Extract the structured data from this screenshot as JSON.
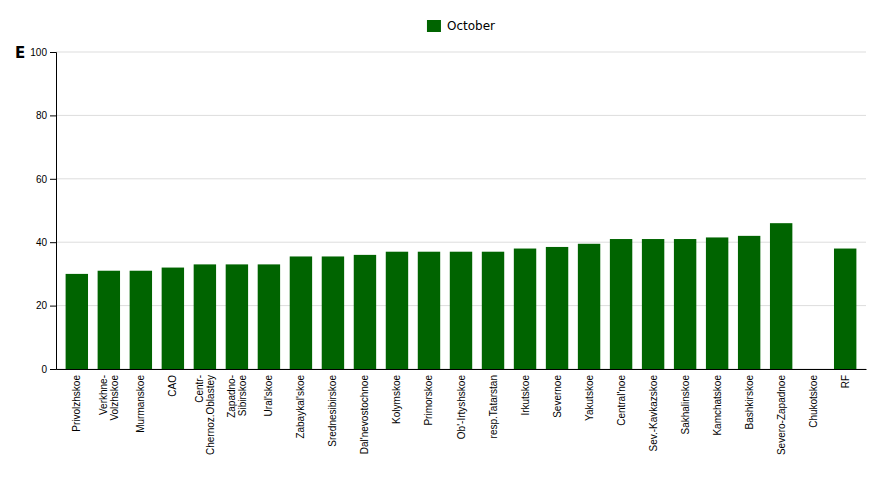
{
  "chart_data": {
    "type": "bar",
    "ylabel": "E",
    "categories": [
      "Privolzhskoe",
      "Verkhne-\nVolzhskoe",
      "Murmanskoe",
      "CAO",
      "Centr-\nChernoz.Oblastey",
      "Zapadno-\nSibirskoe",
      "Ural'skoe",
      "Zabaykal'skoe",
      "Srednesibirskoe",
      "Dal'nevostochnoe",
      "Kolymskoe",
      "Primorskoe",
      "Ob'-Irtyshskoe",
      "resp.Tatarstan",
      "Irkutskoe",
      "Severnoe",
      "Yakutskoe",
      "Central'noe",
      "Sev.-Kavkazskoe",
      "Sakhalinskoe",
      "Kamchatskoe",
      "Bashkirskoe",
      "Severo-Zapadnoe",
      "Chukotskoe",
      "RF"
    ],
    "series": [
      {
        "name": "October",
        "color": "#006400",
        "values": [
          30.0,
          31.0,
          31.0,
          32.0,
          33.0,
          33.0,
          33.0,
          35.5,
          35.5,
          36.0,
          37.0,
          37.0,
          37.0,
          37.0,
          38.0,
          38.5,
          39.5,
          41.0,
          41.0,
          41.0,
          41.5,
          42.0,
          46.0,
          0.0,
          38.0
        ]
      }
    ],
    "ylim": [
      0,
      100
    ],
    "yticks": [
      0,
      20,
      40,
      60,
      80,
      100
    ],
    "grid": true,
    "legend": "top"
  }
}
